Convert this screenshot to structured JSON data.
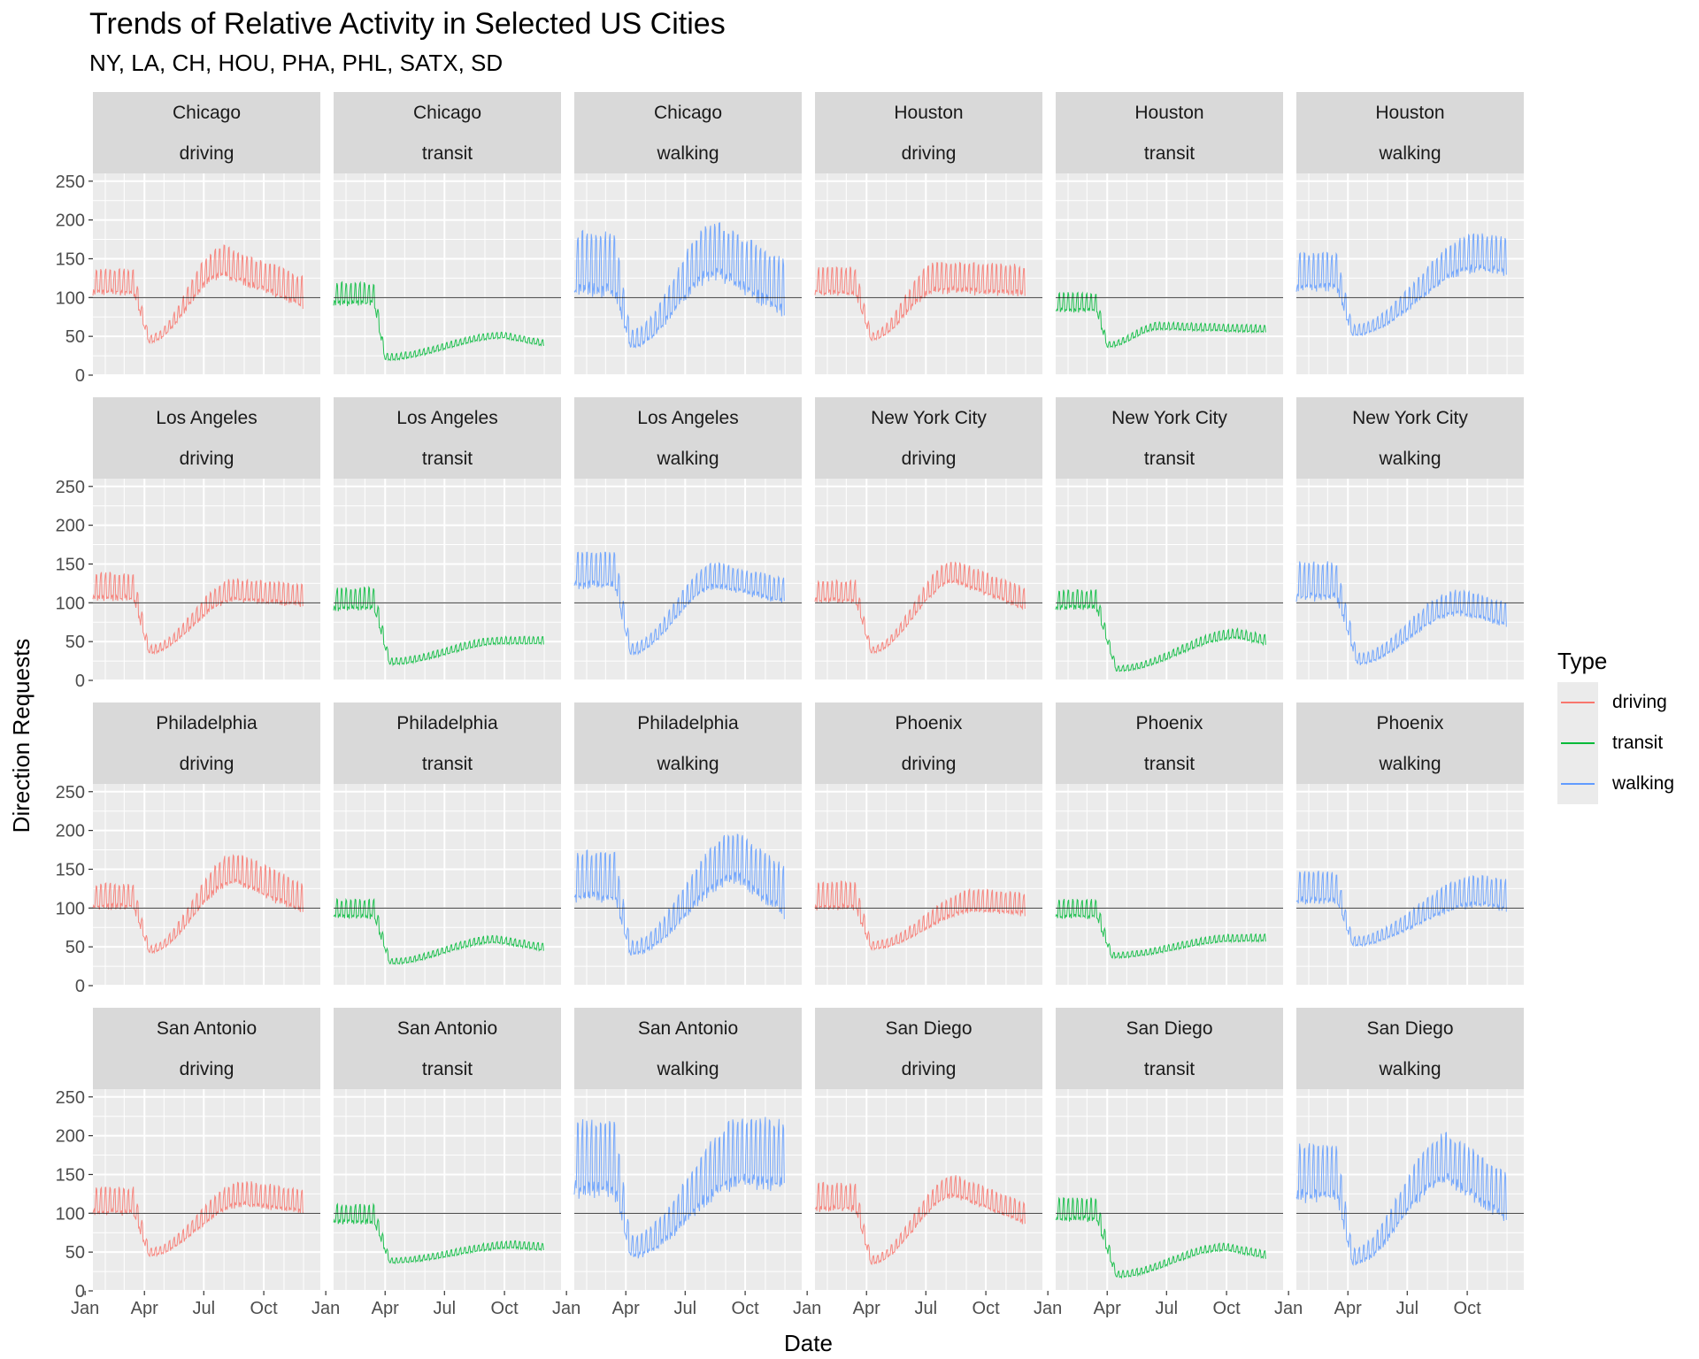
{
  "chart_data": {
    "type": "line",
    "title": "Trends of Relative Activity in Selected US Cities",
    "subtitle": "NY, LA, CH, HOU, PHA, PHL, SATX, SD",
    "xlabel": "Date",
    "ylabel": "Direction Requests",
    "ylim": [
      0,
      260
    ],
    "yticks": [
      0,
      50,
      100,
      150,
      200,
      250
    ],
    "xlim": [
      "2020-01-13",
      "2020-11-30"
    ],
    "xticks": [
      {
        "date": "2020-01-01",
        "label": "Jan"
      },
      {
        "date": "2020-04-01",
        "label": "Apr"
      },
      {
        "date": "2020-07-01",
        "label": "Jul"
      },
      {
        "date": "2020-10-01",
        "label": "Oct"
      }
    ],
    "baseline": 100,
    "grid": true,
    "legend": {
      "title": "Type",
      "position": "right",
      "entries": [
        {
          "label": "driving",
          "color": "#F8766D"
        },
        {
          "label": "transit",
          "color": "#00BA38"
        },
        {
          "label": "walking",
          "color": "#619CFF"
        }
      ]
    },
    "facets": [
      {
        "city": "Chicago",
        "type": "driving",
        "pre": 115,
        "amp": 20,
        "trough_date": "2020-04-08",
        "trough": 45,
        "peak_date": "2020-08-01",
        "peak": 140,
        "end": 100,
        "end_amp": 25,
        "max": 168
      },
      {
        "city": "Chicago",
        "type": "transit",
        "pre": 100,
        "amp": 18,
        "trough_date": "2020-04-01",
        "trough": 22,
        "peak_date": "2020-10-01",
        "peak": 50,
        "end": 40,
        "end_amp": 5,
        "max": 128
      },
      {
        "city": "Chicago",
        "type": "walking",
        "pre": 130,
        "amp": 50,
        "trough_date": "2020-04-08",
        "trough": 42,
        "peak_date": "2020-08-20",
        "peak": 150,
        "end": 100,
        "end_amp": 45,
        "max": 212
      },
      {
        "city": "Houston",
        "type": "driving",
        "pre": 115,
        "amp": 22,
        "trough_date": "2020-04-08",
        "trough": 48,
        "peak_date": "2020-07-20",
        "peak": 120,
        "end": 115,
        "end_amp": 25,
        "max": 145
      },
      {
        "city": "Houston",
        "type": "transit",
        "pre": 90,
        "amp": 15,
        "trough_date": "2020-04-01",
        "trough": 38,
        "peak_date": "2020-06-20",
        "peak": 62,
        "end": 58,
        "end_amp": 6,
        "max": 112
      },
      {
        "city": "Houston",
        "type": "walking",
        "pre": 125,
        "amp": 30,
        "trough_date": "2020-04-08",
        "trough": 55,
        "peak_date": "2020-10-20",
        "peak": 150,
        "end": 145,
        "end_amp": 30,
        "max": 195
      },
      {
        "city": "Los Angeles",
        "type": "driving",
        "pre": 115,
        "amp": 22,
        "trough_date": "2020-04-08",
        "trough": 38,
        "peak_date": "2020-08-20",
        "peak": 112,
        "end": 105,
        "end_amp": 18,
        "max": 152
      },
      {
        "city": "Los Angeles",
        "type": "transit",
        "pre": 100,
        "amp": 18,
        "trough_date": "2020-04-08",
        "trough": 23,
        "peak_date": "2020-10-01",
        "peak": 50,
        "end": 50,
        "end_amp": 6,
        "max": 125
      },
      {
        "city": "Los Angeles",
        "type": "walking",
        "pre": 135,
        "amp": 30,
        "trough_date": "2020-04-08",
        "trough": 38,
        "peak_date": "2020-08-20",
        "peak": 130,
        "end": 110,
        "end_amp": 20,
        "max": 165
      },
      {
        "city": "New York City",
        "type": "driving",
        "pre": 110,
        "amp": 18,
        "trough_date": "2020-04-08",
        "trough": 38,
        "peak_date": "2020-08-15",
        "peak": 135,
        "end": 100,
        "end_amp": 18,
        "max": 152
      },
      {
        "city": "New York City",
        "type": "transit",
        "pre": 100,
        "amp": 15,
        "trough_date": "2020-04-15",
        "trough": 14,
        "peak_date": "2020-10-20",
        "peak": 58,
        "end": 50,
        "end_amp": 8,
        "max": 120
      },
      {
        "city": "New York City",
        "type": "walking",
        "pre": 120,
        "amp": 30,
        "trough_date": "2020-04-15",
        "trough": 25,
        "peak_date": "2020-09-20",
        "peak": 95,
        "end": 80,
        "end_amp": 20,
        "max": 155
      },
      {
        "city": "Philadelphia",
        "type": "driving",
        "pre": 110,
        "amp": 20,
        "trough_date": "2020-04-08",
        "trough": 45,
        "peak_date": "2020-08-20",
        "peak": 145,
        "end": 105,
        "end_amp": 25,
        "max": 168
      },
      {
        "city": "Philadelphia",
        "type": "transit",
        "pre": 95,
        "amp": 15,
        "trough_date": "2020-04-08",
        "trough": 30,
        "peak_date": "2020-09-20",
        "peak": 58,
        "end": 48,
        "end_amp": 6,
        "max": 118
      },
      {
        "city": "Philadelphia",
        "type": "walking",
        "pre": 130,
        "amp": 40,
        "trough_date": "2020-04-08",
        "trough": 45,
        "peak_date": "2020-09-20",
        "peak": 155,
        "end": 110,
        "end_amp": 40,
        "max": 195
      },
      {
        "city": "Phoenix",
        "type": "driving",
        "pre": 110,
        "amp": 22,
        "trough_date": "2020-04-08",
        "trough": 50,
        "peak_date": "2020-09-20",
        "peak": 105,
        "end": 100,
        "end_amp": 18,
        "max": 145
      },
      {
        "city": "Phoenix",
        "type": "transit",
        "pre": 95,
        "amp": 15,
        "trough_date": "2020-04-08",
        "trough": 38,
        "peak_date": "2020-10-20",
        "peak": 60,
        "end": 60,
        "end_amp": 6,
        "max": 118
      },
      {
        "city": "Phoenix",
        "type": "walking",
        "pre": 120,
        "amp": 25,
        "trough_date": "2020-04-08",
        "trough": 55,
        "peak_date": "2020-10-20",
        "peak": 115,
        "end": 110,
        "end_amp": 25,
        "max": 160
      },
      {
        "city": "San Antonio",
        "type": "driving",
        "pre": 110,
        "amp": 22,
        "trough_date": "2020-04-08",
        "trough": 48,
        "peak_date": "2020-09-01",
        "peak": 120,
        "end": 110,
        "end_amp": 20,
        "max": 155
      },
      {
        "city": "San Antonio",
        "type": "transit",
        "pre": 95,
        "amp": 15,
        "trough_date": "2020-04-08",
        "trough": 38,
        "peak_date": "2020-10-20",
        "peak": 58,
        "end": 55,
        "end_amp": 6,
        "max": 115
      },
      {
        "city": "San Antonio",
        "type": "walking",
        "pre": 155,
        "amp": 60,
        "trough_date": "2020-04-08",
        "trough": 52,
        "peak_date": "2020-10-01",
        "peak": 165,
        "end": 160,
        "end_amp": 55,
        "max": 250
      },
      {
        "city": "San Diego",
        "type": "driving",
        "pre": 115,
        "amp": 22,
        "trough_date": "2020-04-08",
        "trough": 38,
        "peak_date": "2020-08-15",
        "peak": 130,
        "end": 95,
        "end_amp": 18,
        "max": 152
      },
      {
        "city": "San Diego",
        "type": "transit",
        "pre": 100,
        "amp": 18,
        "trough_date": "2020-04-15",
        "trough": 20,
        "peak_date": "2020-10-01",
        "peak": 55,
        "end": 45,
        "end_amp": 6,
        "max": 122
      },
      {
        "city": "San Diego",
        "type": "walking",
        "pre": 140,
        "amp": 45,
        "trough_date": "2020-04-08",
        "trough": 40,
        "peak_date": "2020-09-01",
        "peak": 160,
        "end": 110,
        "end_amp": 40,
        "max": 232
      }
    ]
  }
}
